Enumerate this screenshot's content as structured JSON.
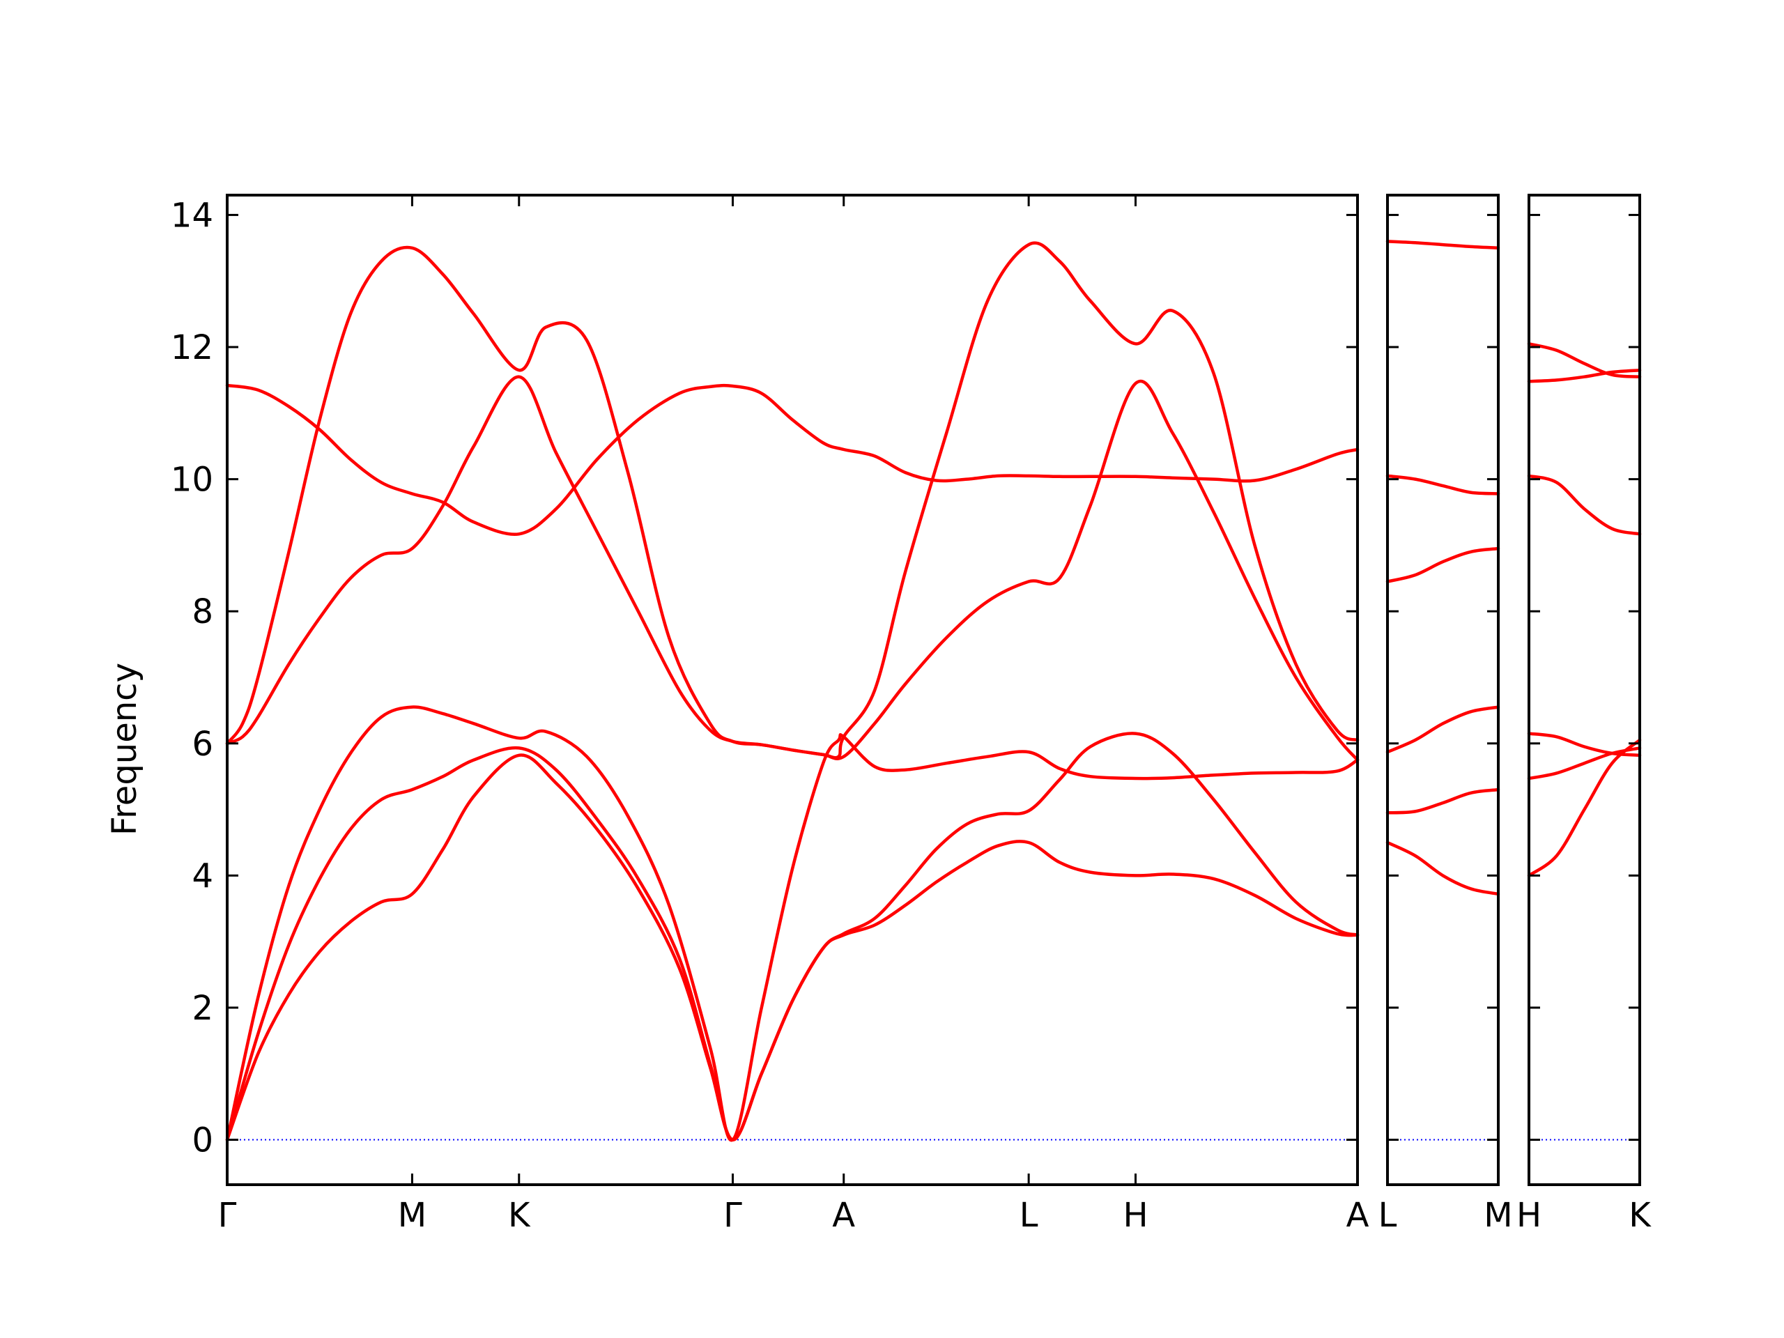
{
  "chart_data": {
    "type": "line",
    "title": "",
    "xlabel": "",
    "ylabel": "Frequency",
    "ylim": [
      -0.68,
      14.3
    ],
    "yticks": [
      0,
      2,
      4,
      6,
      8,
      10,
      12,
      14
    ],
    "grid": false,
    "legend": "none",
    "colors": {
      "bands": "#ff0000",
      "zero_line": "#0000ff",
      "axes": "#000000"
    },
    "panels": [
      {
        "id": "panel-1",
        "xlim": [
          0,
          11
        ],
        "xticks": [
          {
            "x": 0,
            "label": "Γ"
          },
          {
            "x": 1.8,
            "label": "M"
          },
          {
            "x": 2.84,
            "label": "K"
          },
          {
            "x": 4.92,
            "label": "Γ"
          },
          {
            "x": 6.0,
            "label": "A"
          },
          {
            "x": 7.8,
            "label": "L"
          },
          {
            "x": 8.84,
            "label": "H"
          },
          {
            "x": 11.0,
            "label": "A"
          }
        ],
        "series": [
          {
            "x": [
              0,
              0.3,
              0.6,
              0.9,
              1.2,
              1.5,
              1.8,
              2.1,
              2.4,
              2.84,
              3.2,
              3.6,
              4.0,
              4.4,
              4.7,
              4.92,
              5.2,
              5.5,
              5.8,
              6.0,
              6.3,
              6.6,
              6.9,
              7.2,
              7.5,
              7.8,
              8.1,
              8.4,
              8.84,
              9.2,
              9.6,
              10.0,
              10.4,
              10.8,
              11.0
            ],
            "y": [
              0,
              1.3,
              2.2,
              2.85,
              3.3,
              3.6,
              3.72,
              4.4,
              5.2,
              5.82,
              5.4,
              4.7,
              3.8,
              2.6,
              1.1,
              0,
              1.0,
              2.1,
              2.9,
              3.1,
              3.25,
              3.55,
              3.9,
              4.2,
              4.45,
              4.5,
              4.2,
              4.05,
              4.0,
              4.02,
              3.95,
              3.7,
              3.35,
              3.12,
              3.1
            ]
          },
          {
            "x": [
              0,
              0.3,
              0.6,
              0.9,
              1.2,
              1.5,
              1.8,
              2.1,
              2.4,
              2.84,
              3.2,
              3.6,
              4.0,
              4.4,
              4.7,
              4.92,
              5.2,
              5.5,
              5.8,
              6.0,
              6.3,
              6.6,
              6.9,
              7.2,
              7.5,
              7.8,
              8.1,
              8.4,
              8.84,
              9.2,
              9.6,
              10.0,
              10.4,
              10.8,
              11.0
            ],
            "y": [
              0,
              1.6,
              2.95,
              3.95,
              4.7,
              5.15,
              5.3,
              5.5,
              5.75,
              5.93,
              5.6,
              4.85,
              3.95,
              2.75,
              1.15,
              0,
              1.0,
              2.1,
              2.9,
              3.12,
              3.35,
              3.85,
              4.4,
              4.78,
              4.93,
              4.98,
              5.45,
              5.95,
              6.15,
              5.85,
              5.15,
              4.35,
              3.6,
              3.18,
              3.1
            ]
          },
          {
            "x": [
              0,
              0.3,
              0.6,
              0.9,
              1.2,
              1.5,
              1.8,
              2.1,
              2.4,
              2.84,
              3.1,
              3.5,
              3.9,
              4.3,
              4.7,
              4.92,
              5.2,
              5.5,
              5.8,
              5.95,
              6.0,
              6.3,
              6.6,
              7.0,
              7.4,
              7.8,
              8.1,
              8.4,
              8.84,
              9.2,
              9.6,
              10.0,
              10.4,
              10.8,
              11.0
            ],
            "y": [
              0,
              2.15,
              3.85,
              5.0,
              5.85,
              6.4,
              6.55,
              6.45,
              6.3,
              6.08,
              6.18,
              5.8,
              4.9,
              3.55,
              1.4,
              0,
              2.0,
              4.1,
              5.7,
              6.05,
              6.1,
              5.65,
              5.6,
              5.7,
              5.8,
              5.87,
              5.62,
              5.5,
              5.47,
              5.48,
              5.52,
              5.55,
              5.56,
              5.58,
              5.75
            ]
          },
          {
            "x": [
              0,
              0.15,
              0.3,
              0.6,
              0.9,
              1.2,
              1.5,
              1.8,
              2.1,
              2.4,
              2.84,
              3.2,
              3.6,
              4.0,
              4.4,
              4.7,
              4.92,
              5.2,
              5.5,
              5.8,
              6.0,
              6.3,
              6.6,
              7.0,
              7.4,
              7.8,
              8.1,
              8.4,
              8.84,
              9.2,
              9.6,
              10.0,
              10.4,
              10.8,
              11.0
            ],
            "y": [
              6.0,
              6.1,
              6.4,
              7.2,
              7.9,
              8.5,
              8.85,
              8.95,
              9.6,
              10.5,
              11.55,
              10.4,
              9.2,
              8.0,
              6.8,
              6.2,
              6.03,
              5.98,
              5.9,
              5.83,
              5.8,
              6.3,
              6.9,
              7.6,
              8.15,
              8.45,
              8.5,
              9.6,
              11.45,
              10.7,
              9.5,
              8.2,
              7.0,
              6.1,
              5.75
            ]
          },
          {
            "x": [
              0,
              0.15,
              0.3,
              0.6,
              0.9,
              1.2,
              1.5,
              1.8,
              2.1,
              2.4,
              2.84,
              3.1,
              3.5,
              3.9,
              4.3,
              4.7,
              4.92,
              5.2,
              5.5,
              5.8,
              5.95,
              6.0,
              6.3,
              6.6,
              7.0,
              7.4,
              7.8,
              8.1,
              8.4,
              8.84,
              9.2,
              9.6,
              10.0,
              10.4,
              10.8,
              11.0
            ],
            "y": [
              6.0,
              6.3,
              7.0,
              8.9,
              10.9,
              12.5,
              13.3,
              13.5,
              13.1,
              12.5,
              11.65,
              12.3,
              12.1,
              10.1,
              7.6,
              6.3,
              6.03,
              5.98,
              5.9,
              5.83,
              5.8,
              6.1,
              6.8,
              8.6,
              10.7,
              12.7,
              13.55,
              13.3,
              12.7,
              12.05,
              12.55,
              11.6,
              9.0,
              7.2,
              6.2,
              6.05
            ]
          },
          {
            "x": [
              0,
              0.3,
              0.6,
              0.9,
              1.2,
              1.5,
              1.8,
              2.1,
              2.4,
              2.84,
              3.2,
              3.6,
              4.0,
              4.4,
              4.7,
              4.92,
              5.2,
              5.5,
              5.8,
              6.0,
              6.3,
              6.6,
              6.9,
              7.2,
              7.5,
              7.8,
              8.1,
              8.4,
              8.84,
              9.2,
              9.6,
              10.0,
              10.4,
              10.8,
              11.0
            ],
            "y": [
              11.42,
              11.35,
              11.1,
              10.75,
              10.3,
              9.95,
              9.78,
              9.65,
              9.35,
              9.17,
              9.55,
              10.3,
              10.9,
              11.3,
              11.4,
              11.41,
              11.3,
              10.9,
              10.55,
              10.45,
              10.35,
              10.1,
              9.98,
              10.0,
              10.05,
              10.05,
              10.04,
              10.04,
              10.04,
              10.02,
              10.0,
              9.98,
              10.15,
              10.38,
              10.45
            ]
          }
        ]
      },
      {
        "id": "panel-2",
        "xlim": [
          0,
          1
        ],
        "xticks": [
          {
            "x": 0,
            "label": "L"
          },
          {
            "x": 1,
            "label": "M"
          }
        ],
        "series": [
          {
            "x": [
              0,
              0.25,
              0.5,
              0.75,
              1.0
            ],
            "y": [
              4.5,
              4.3,
              4.0,
              3.8,
              3.72
            ]
          },
          {
            "x": [
              0,
              0.25,
              0.5,
              0.75,
              1.0
            ],
            "y": [
              4.95,
              4.97,
              5.1,
              5.25,
              5.3
            ]
          },
          {
            "x": [
              0,
              0.25,
              0.5,
              0.75,
              1.0
            ],
            "y": [
              5.87,
              6.05,
              6.3,
              6.48,
              6.55
            ]
          },
          {
            "x": [
              0,
              0.25,
              0.5,
              0.75,
              1.0
            ],
            "y": [
              8.45,
              8.55,
              8.75,
              8.9,
              8.95
            ]
          },
          {
            "x": [
              0,
              0.25,
              0.5,
              0.75,
              1.0
            ],
            "y": [
              10.05,
              10.0,
              9.9,
              9.8,
              9.78
            ]
          },
          {
            "x": [
              0,
              0.25,
              0.5,
              0.75,
              1.0
            ],
            "y": [
              13.6,
              13.58,
              13.55,
              13.52,
              13.5
            ]
          }
        ]
      },
      {
        "id": "panel-3",
        "xlim": [
          0,
          1
        ],
        "xticks": [
          {
            "x": 0,
            "label": "H"
          },
          {
            "x": 1,
            "label": "K"
          }
        ],
        "series": [
          {
            "x": [
              0,
              0.25,
              0.5,
              0.75,
              1.0
            ],
            "y": [
              4.0,
              4.3,
              5.0,
              5.7,
              6.05
            ]
          },
          {
            "x": [
              0,
              0.25,
              0.5,
              0.75,
              1.0
            ],
            "y": [
              5.47,
              5.55,
              5.7,
              5.85,
              5.93
            ]
          },
          {
            "x": [
              0,
              0.25,
              0.5,
              0.75,
              1.0
            ],
            "y": [
              6.15,
              6.1,
              5.95,
              5.85,
              5.82
            ]
          },
          {
            "x": [
              0,
              0.25,
              0.5,
              0.75,
              1.0
            ],
            "y": [
              10.05,
              9.95,
              9.55,
              9.25,
              9.17
            ]
          },
          {
            "x": [
              0,
              0.25,
              0.5,
              0.75,
              1.0
            ],
            "y": [
              11.48,
              11.5,
              11.55,
              11.62,
              11.65
            ]
          },
          {
            "x": [
              0,
              0.25,
              0.5,
              0.75,
              1.0
            ],
            "y": [
              12.05,
              11.95,
              11.75,
              11.58,
              11.55
            ]
          }
        ]
      }
    ]
  }
}
